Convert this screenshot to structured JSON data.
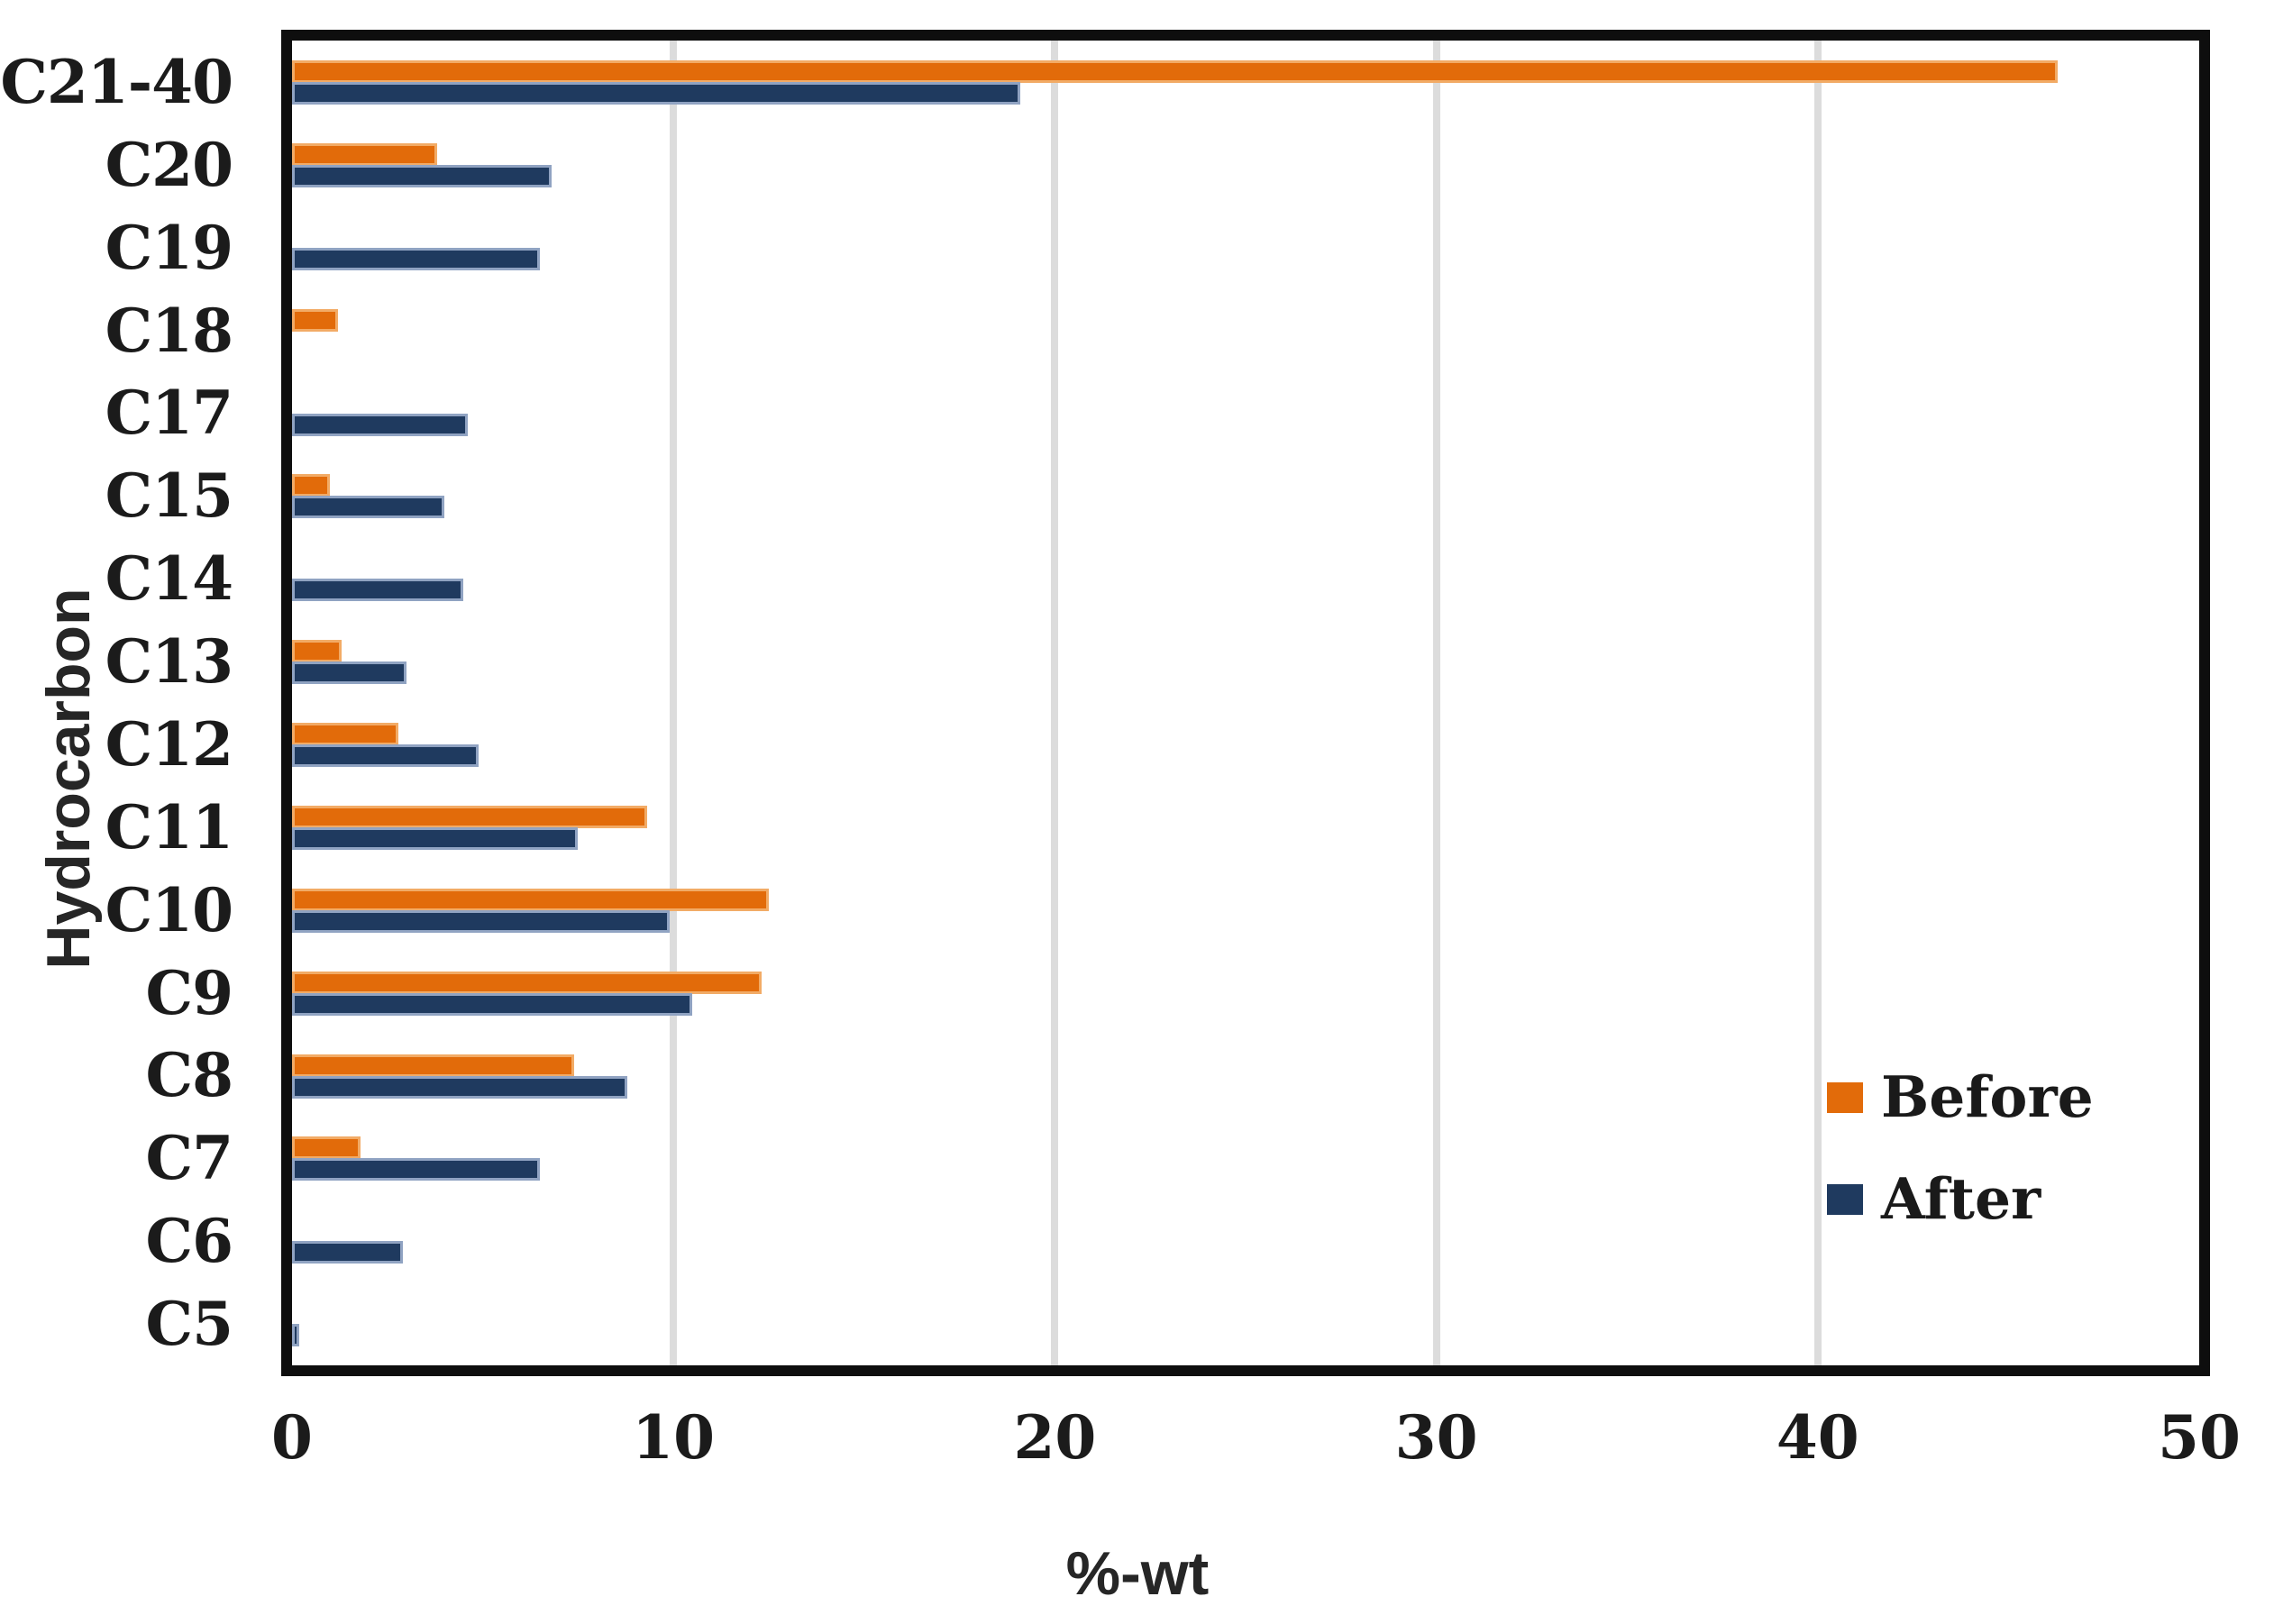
{
  "chart_data": {
    "type": "bar",
    "orientation": "horizontal",
    "title": "",
    "xlabel": "%-wt",
    "ylabel": "Hydrocarbon",
    "xlim": [
      0,
      50
    ],
    "xticks": [
      0,
      10,
      20,
      30,
      40,
      50
    ],
    "gridlines": [
      10,
      20,
      30,
      40
    ],
    "grid": "vertical major gridlines only",
    "legend_position": "inside right, lower area",
    "categories": [
      "C21-40",
      "C20",
      "C19",
      "C18",
      "C17",
      "C15",
      "C14",
      "C13",
      "C12",
      "C11",
      "C10",
      "C9",
      "C8",
      "C7",
      "C6",
      "C5"
    ],
    "series": [
      {
        "name": "Before",
        "color": "#e26b0a",
        "values": [
          46.3,
          3.8,
          0,
          1.2,
          0,
          1.0,
          0,
          1.3,
          2.8,
          9.3,
          12.5,
          12.3,
          7.4,
          1.8,
          0,
          0
        ]
      },
      {
        "name": "After",
        "color": "#1f3a5f",
        "values": [
          19.1,
          6.8,
          6.5,
          0,
          4.6,
          4.0,
          4.5,
          3.0,
          4.9,
          7.5,
          9.9,
          10.5,
          8.8,
          6.5,
          2.9,
          0.2
        ]
      }
    ]
  },
  "styles": {
    "gridline_color": "#dcdcdc",
    "plot_border_color": "#0e0e0e",
    "text_color": "#1b1b1b"
  }
}
